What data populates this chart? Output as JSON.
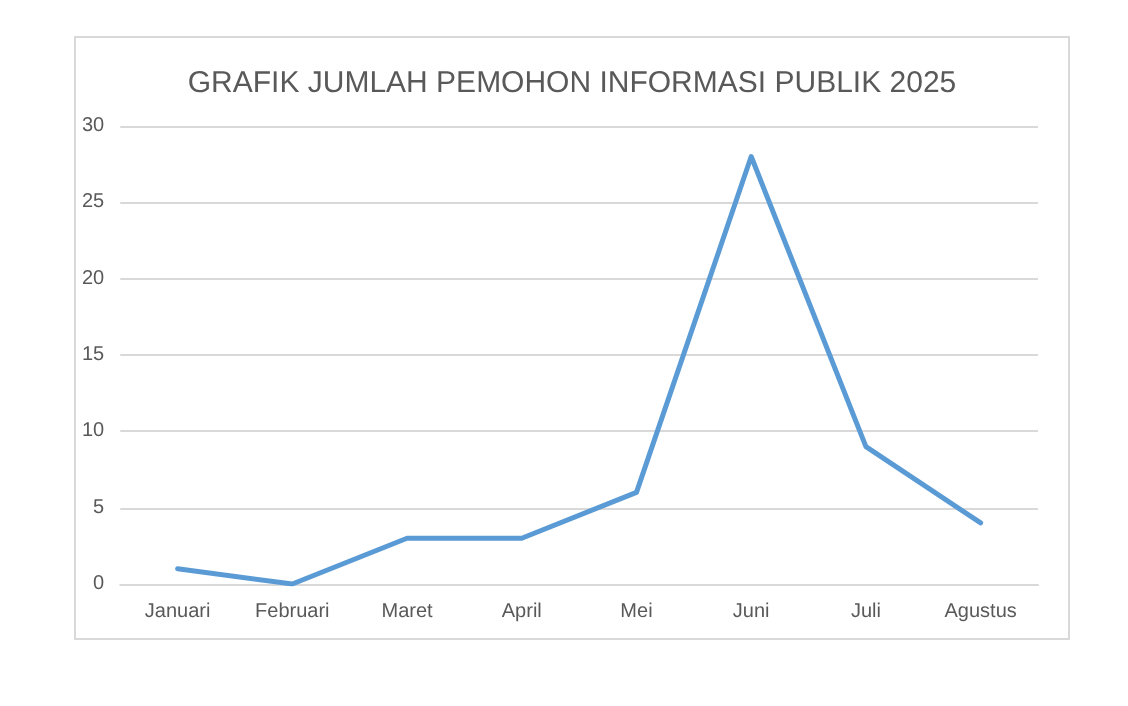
{
  "chart_data": {
    "type": "line",
    "title": "GRAFIK JUMLAH PEMOHON INFORMASI PUBLIK 2025",
    "categories": [
      "Januari",
      "Februari",
      "Maret",
      "April",
      "Mei",
      "Juni",
      "Juli",
      "Agustus"
    ],
    "series": [
      {
        "color": "#5b9bd5",
        "values": [
          1,
          0,
          3,
          3,
          6,
          28,
          9,
          4
        ]
      }
    ],
    "ylim": [
      0,
      30
    ],
    "yticks": [
      0,
      5,
      10,
      15,
      20,
      25,
      30
    ],
    "grid": "y",
    "marker": "none",
    "line_style": "solid"
  }
}
